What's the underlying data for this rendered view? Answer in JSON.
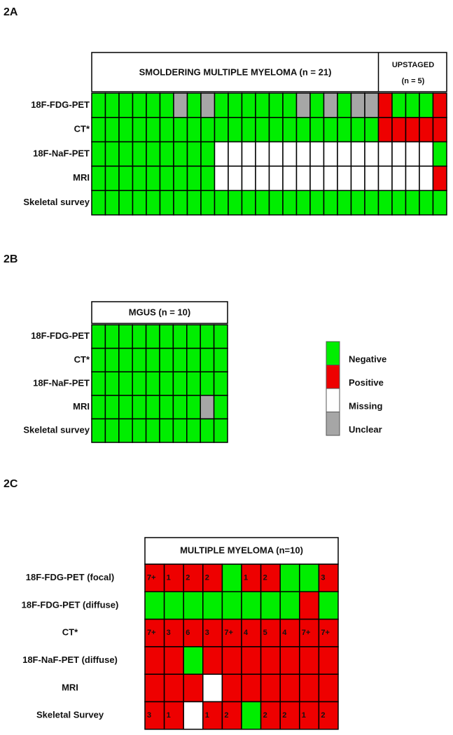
{
  "panels": [
    {
      "label": "2A",
      "header": "SMOLDERING MULTIPLE MYELOMA (n = 21)",
      "header2": [
        "UPSTAGED",
        "(n = 5)"
      ],
      "rows": [
        {
          "label": "18F-FDG-PET",
          "cells": [
            "#00ee00",
            "#00ee00",
            "#00ee00",
            "#00ee00",
            "#00ee00",
            "#00ee00",
            "#a6a6a6",
            "#00ee00",
            "#a6a6a6",
            "#00ee00",
            "#00ee00",
            "#00ee00",
            "#00ee00",
            "#00ee00",
            "#00ee00",
            "#a6a6a6",
            "#00ee00",
            "#a6a6a6",
            "#00ee00",
            "#a6a6a6",
            "#a6a6a6",
            "#ee0000",
            "#00ee00",
            "#00ee00",
            "#00ee00",
            "#ee0000"
          ]
        },
        {
          "label": "CT*",
          "cells": [
            "#00ee00",
            "#00ee00",
            "#00ee00",
            "#00ee00",
            "#00ee00",
            "#00ee00",
            "#00ee00",
            "#00ee00",
            "#00ee00",
            "#00ee00",
            "#00ee00",
            "#00ee00",
            "#00ee00",
            "#00ee00",
            "#00ee00",
            "#00ee00",
            "#00ee00",
            "#00ee00",
            "#00ee00",
            "#00ee00",
            "#00ee00",
            "#ee0000",
            "#ee0000",
            "#ee0000",
            "#ee0000",
            "#ee0000"
          ]
        },
        {
          "label": "18F-NaF-PET",
          "cells": [
            "#00ee00",
            "#00ee00",
            "#00ee00",
            "#00ee00",
            "#00ee00",
            "#00ee00",
            "#00ee00",
            "#00ee00",
            "#00ee00",
            "#ffffff",
            "#ffffff",
            "#ffffff",
            "#ffffff",
            "#ffffff",
            "#ffffff",
            "#ffffff",
            "#ffffff",
            "#ffffff",
            "#ffffff",
            "#ffffff",
            "#ffffff",
            "#ffffff",
            "#ffffff",
            "#ffffff",
            "#ffffff",
            "#00ee00"
          ]
        },
        {
          "label": "MRI",
          "cells": [
            "#00ee00",
            "#00ee00",
            "#00ee00",
            "#00ee00",
            "#00ee00",
            "#00ee00",
            "#00ee00",
            "#00ee00",
            "#00ee00",
            "#ffffff",
            "#ffffff",
            "#ffffff",
            "#ffffff",
            "#ffffff",
            "#ffffff",
            "#ffffff",
            "#ffffff",
            "#ffffff",
            "#ffffff",
            "#ffffff",
            "#ffffff",
            "#ffffff",
            "#ffffff",
            "#ffffff",
            "#ffffff",
            "#ee0000"
          ]
        },
        {
          "label": "Skeletal survey",
          "cells": [
            "#00ee00",
            "#00ee00",
            "#00ee00",
            "#00ee00",
            "#00ee00",
            "#00ee00",
            "#00ee00",
            "#00ee00",
            "#00ee00",
            "#00ee00",
            "#00ee00",
            "#00ee00",
            "#00ee00",
            "#00ee00",
            "#00ee00",
            "#00ee00",
            "#00ee00",
            "#00ee00",
            "#00ee00",
            "#00ee00",
            "#00ee00",
            "#00ee00",
            "#00ee00",
            "#00ee00",
            "#00ee00",
            "#00ee00"
          ]
        }
      ]
    },
    {
      "label": "2B",
      "header": "MGUS (n = 10)",
      "rows": [
        {
          "label": "18F-FDG-PET",
          "cells": [
            "#00ee00",
            "#00ee00",
            "#00ee00",
            "#00ee00",
            "#00ee00",
            "#00ee00",
            "#00ee00",
            "#00ee00",
            "#00ee00",
            "#00ee00"
          ]
        },
        {
          "label": "CT*",
          "cells": [
            "#00ee00",
            "#00ee00",
            "#00ee00",
            "#00ee00",
            "#00ee00",
            "#00ee00",
            "#00ee00",
            "#00ee00",
            "#00ee00",
            "#00ee00"
          ]
        },
        {
          "label": "18F-NaF-PET",
          "cells": [
            "#00ee00",
            "#00ee00",
            "#00ee00",
            "#00ee00",
            "#00ee00",
            "#00ee00",
            "#00ee00",
            "#00ee00",
            "#00ee00",
            "#00ee00"
          ]
        },
        {
          "label": "MRI",
          "cells": [
            "#00ee00",
            "#00ee00",
            "#00ee00",
            "#00ee00",
            "#00ee00",
            "#00ee00",
            "#00ee00",
            "#00ee00",
            "#a6a6a6",
            "#00ee00"
          ]
        },
        {
          "label": "Skeletal survey",
          "cells": [
            "#00ee00",
            "#00ee00",
            "#00ee00",
            "#00ee00",
            "#00ee00",
            "#00ee00",
            "#00ee00",
            "#00ee00",
            "#00ee00",
            "#00ee00"
          ]
        }
      ]
    },
    {
      "label": "2C",
      "header": "MULTIPLE MYELOMA (n=10)",
      "rows": [
        {
          "label": "18F-FDG-PET (focal)",
          "cells": [
            "#ee0000",
            "#ee0000",
            "#ee0000",
            "#ee0000",
            "#00ee00",
            "#ee0000",
            "#ee0000",
            "#00ee00",
            "#00ee00",
            "#ee0000"
          ],
          "labels": [
            "7+",
            "1",
            "2",
            "2",
            null,
            "1",
            "2",
            null,
            null,
            "3"
          ]
        },
        {
          "label": "18F-FDG-PET (diffuse)",
          "cells": [
            "#00ee00",
            "#00ee00",
            "#00ee00",
            "#00ee00",
            "#00ee00",
            "#00ee00",
            "#00ee00",
            "#00ee00",
            "#ee0000",
            "#00ee00"
          ]
        },
        {
          "label": "CT*",
          "cells": [
            "#ee0000",
            "#ee0000",
            "#ee0000",
            "#ee0000",
            "#ee0000",
            "#ee0000",
            "#ee0000",
            "#ee0000",
            "#ee0000",
            "#ee0000"
          ],
          "labels": [
            "7+",
            "3",
            "6",
            "3",
            "7+",
            "4",
            "5",
            "4",
            "7+",
            "7+"
          ]
        },
        {
          "label": "18F-NaF-PET (diffuse)",
          "cells": [
            "#ee0000",
            "#ee0000",
            "#00ee00",
            "#ee0000",
            "#ee0000",
            "#ee0000",
            "#ee0000",
            "#ee0000",
            "#ee0000",
            "#ee0000"
          ]
        },
        {
          "label": "MRI",
          "cells": [
            "#ee0000",
            "#ee0000",
            "#ee0000",
            "#ffffff",
            "#ee0000",
            "#ee0000",
            "#ee0000",
            "#ee0000",
            "#ee0000",
            "#ee0000"
          ]
        },
        {
          "label": "Skeletal Survey",
          "cells": [
            "#ee0000",
            "#ee0000",
            "#ffffff",
            "#ee0000",
            "#ee0000",
            "#00ee00",
            "#ee0000",
            "#ee0000",
            "#ee0000",
            "#ee0000"
          ],
          "labels": [
            "3",
            "1",
            null,
            "1",
            "2",
            null,
            "2",
            "2",
            "1",
            "2"
          ]
        }
      ]
    }
  ],
  "legend": [
    {
      "label": "Negative",
      "color": "#00ee00"
    },
    {
      "label": "Positive",
      "color": "#ee0000"
    },
    {
      "label": "Missing",
      "color": "#ffffff"
    },
    {
      "label": "Unclear",
      "color": "#a6a6a6"
    }
  ]
}
